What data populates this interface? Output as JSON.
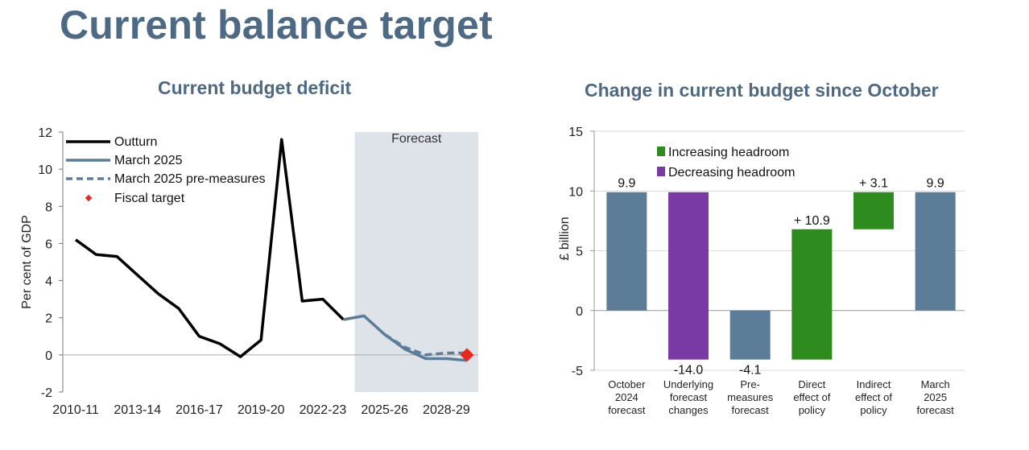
{
  "slide": {
    "title": "Current balance target"
  },
  "chart_data": [
    {
      "type": "line",
      "title": "Current budget deficit",
      "ylabel": "Per cent of GDP",
      "xlabel": "",
      "ylim": [
        -2,
        12
      ],
      "yticks": [
        -2,
        0,
        2,
        4,
        6,
        8,
        10,
        12
      ],
      "xticks": [
        "2010-11",
        "2013-14",
        "2016-17",
        "2019-20",
        "2022-23",
        "2025-26",
        "2028-29"
      ],
      "years": [
        "2010-11",
        "2011-12",
        "2012-13",
        "2013-14",
        "2014-15",
        "2015-16",
        "2016-17",
        "2017-18",
        "2018-19",
        "2019-20",
        "2020-21",
        "2021-22",
        "2022-23",
        "2023-24",
        "2024-25",
        "2025-26",
        "2026-27",
        "2027-28",
        "2028-29",
        "2029-30"
      ],
      "forecast_region": {
        "label": "Forecast",
        "start": "2023-24",
        "end": "2029-30"
      },
      "series": [
        {
          "name": "Outturn",
          "color": "#000000",
          "style": "solid",
          "x": [
            "2010-11",
            "2011-12",
            "2012-13",
            "2013-14",
            "2014-15",
            "2015-16",
            "2016-17",
            "2017-18",
            "2018-19",
            "2019-20",
            "2020-21",
            "2021-22",
            "2022-23",
            "2023-24"
          ],
          "values": [
            6.2,
            5.4,
            5.3,
            4.3,
            3.3,
            2.5,
            1.0,
            0.6,
            -0.1,
            0.8,
            11.6,
            2.9,
            3.0,
            1.9
          ]
        },
        {
          "name": "March 2025",
          "color": "#5c7d98",
          "style": "solid",
          "x": [
            "2023-24",
            "2024-25",
            "2025-26",
            "2026-27",
            "2027-28",
            "2028-29",
            "2029-30"
          ],
          "values": [
            1.9,
            2.1,
            1.1,
            0.3,
            -0.2,
            -0.2,
            -0.3
          ]
        },
        {
          "name": "March 2025 pre-measures",
          "color": "#5c7d98",
          "style": "dashed",
          "x": [
            "2025-26",
            "2026-27",
            "2027-28",
            "2028-29",
            "2029-30"
          ],
          "values": [
            1.1,
            0.4,
            0.0,
            0.1,
            0.1
          ]
        },
        {
          "name": "Fiscal target",
          "color": "#e8291c",
          "style": "marker",
          "x": [
            "2029-30"
          ],
          "values": [
            0.0
          ]
        }
      ]
    },
    {
      "type": "bar",
      "subtype": "waterfall",
      "title": "Change in current budget since October",
      "ylabel": "£ billion",
      "xlabel": "",
      "ylim": [
        -5,
        15
      ],
      "yticks": [
        -5,
        0,
        5,
        10,
        15
      ],
      "legend": [
        {
          "name": "Increasing headroom",
          "color": "#2e8b1e"
        },
        {
          "name": "Decreasing headroom",
          "color": "#7a3aa3"
        }
      ],
      "bars": [
        {
          "category": [
            "October",
            "2024",
            "forecast"
          ],
          "from": 0,
          "to": 9.9,
          "label": "9.9",
          "color": "#5c7d98"
        },
        {
          "category": [
            "Underlying",
            "forecast",
            "changes"
          ],
          "from": 9.9,
          "to": -4.1,
          "label": "-14.0",
          "color": "#7a3aa3"
        },
        {
          "category": [
            "Pre-",
            "measures",
            "forecast"
          ],
          "from": 0,
          "to": -4.1,
          "label": "-4.1",
          "color": "#5c7d98"
        },
        {
          "category": [
            "Direct",
            "effect of",
            "policy"
          ],
          "from": -4.1,
          "to": 6.8,
          "label": "+ 10.9",
          "color": "#2e8b1e"
        },
        {
          "category": [
            "Indirect",
            "effect of",
            "policy"
          ],
          "from": 6.8,
          "to": 9.9,
          "label": "+ 3.1",
          "color": "#2e8b1e"
        },
        {
          "category": [
            "March",
            "2025",
            "forecast"
          ],
          "from": 0,
          "to": 9.9,
          "label": "9.9",
          "color": "#5c7d98"
        }
      ]
    }
  ]
}
